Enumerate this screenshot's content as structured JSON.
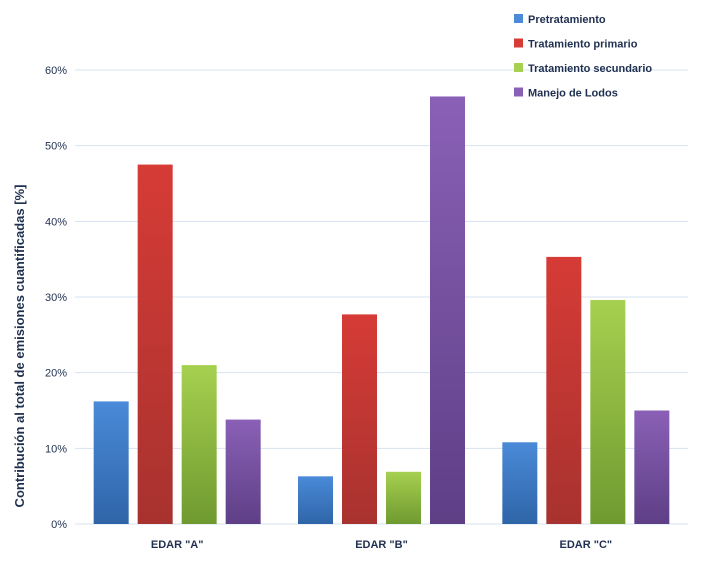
{
  "chart_data": {
    "type": "bar",
    "title": "",
    "xlabel": "",
    "ylabel": "Contribución al total de emisiones cuantificadas [%]",
    "categories": [
      "EDAR \"A\"",
      "EDAR \"B\"",
      "EDAR \"C\""
    ],
    "ylim": [
      0,
      60
    ],
    "yticks": [
      0,
      10,
      20,
      30,
      40,
      50,
      60
    ],
    "ytick_labels": [
      "0%",
      "10%",
      "20%",
      "30%",
      "40%",
      "50%",
      "60%"
    ],
    "grid": true,
    "legend_position": "top-right",
    "series": [
      {
        "name": "Pretratamiento",
        "color_top": "#4a8ad8",
        "color_bottom": "#2f65a8",
        "values": [
          16.2,
          6.3,
          10.8
        ]
      },
      {
        "name": "Tratamiento primario",
        "color_top": "#d63b36",
        "color_bottom": "#a8322f",
        "values": [
          47.5,
          27.7,
          35.3
        ]
      },
      {
        "name": "Tratamiento secundario",
        "color_top": "#a6d04f",
        "color_bottom": "#6f9a30",
        "values": [
          21.0,
          6.9,
          29.6
        ]
      },
      {
        "name": "Manejo de Lodos",
        "color_top": "#8a60b6",
        "color_bottom": "#5e3f86",
        "values": [
          13.8,
          56.5,
          15.0
        ]
      }
    ]
  }
}
